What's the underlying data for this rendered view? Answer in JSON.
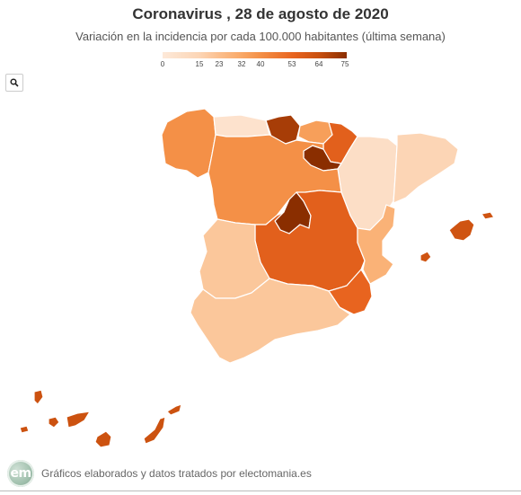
{
  "header": {
    "title": "Coronavirus , 28 de agosto de 2020",
    "subtitle": "Variación en la incidencia por cada 100.000 habitantes (última semana)"
  },
  "legend": {
    "min": 0,
    "max": 75,
    "ticks": [
      "0",
      "15",
      "23",
      "32",
      "40",
      "53",
      "64",
      "75"
    ],
    "colors": [
      "#fde9d9",
      "#fcd5b5",
      "#fbbe8c",
      "#f9a866",
      "#f49047",
      "#e8641f",
      "#c9500f",
      "#8a2e00"
    ]
  },
  "controls": {
    "zoom_icon": "search-icon"
  },
  "map": {
    "regions": [
      {
        "id": "galicia",
        "level": 40
      },
      {
        "id": "asturias",
        "level": 5
      },
      {
        "id": "cantabria",
        "level": 70
      },
      {
        "id": "pais-vasco",
        "level": 35
      },
      {
        "id": "navarra",
        "level": 55
      },
      {
        "id": "la-rioja",
        "level": 75
      },
      {
        "id": "aragon",
        "level": 8
      },
      {
        "id": "cataluna",
        "level": 15
      },
      {
        "id": "castilla-y-leon",
        "level": 40
      },
      {
        "id": "madrid",
        "level": 75
      },
      {
        "id": "castilla-la-mancha",
        "level": 55
      },
      {
        "id": "comunidad-valenciana",
        "level": 28
      },
      {
        "id": "murcia",
        "level": 53
      },
      {
        "id": "extremadura",
        "level": 20
      },
      {
        "id": "andalucia",
        "level": 20
      },
      {
        "id": "baleares",
        "level": 62
      },
      {
        "id": "canarias",
        "level": 63
      }
    ]
  },
  "footer": {
    "logo_text": "em",
    "credit": "Gráficos elaborados y datos tratados por electomania.es"
  }
}
